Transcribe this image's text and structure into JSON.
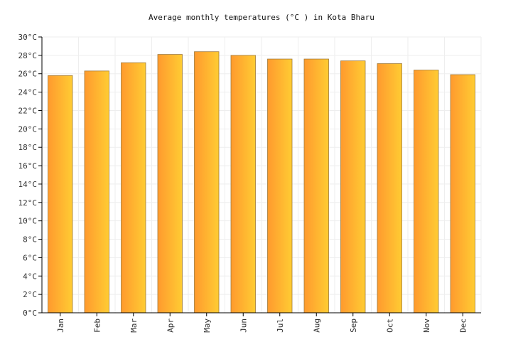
{
  "chart_data": {
    "type": "bar",
    "title": "Average monthly temperatures (°C ) in Kota Bharu",
    "categories": [
      "Jan",
      "Feb",
      "Mar",
      "Apr",
      "May",
      "Jun",
      "Jul",
      "Aug",
      "Sep",
      "Oct",
      "Nov",
      "Dec"
    ],
    "values": [
      25.8,
      26.3,
      27.2,
      28.1,
      28.4,
      28.0,
      27.6,
      27.6,
      27.4,
      27.1,
      26.4,
      25.9
    ],
    "ylim": [
      0,
      30
    ],
    "yticks": [
      "0°C",
      "2°C",
      "4°C",
      "6°C",
      "8°C",
      "10°C",
      "12°C",
      "14°C",
      "16°C",
      "18°C",
      "20°C",
      "22°C",
      "24°C",
      "26°C",
      "28°C",
      "30°C"
    ],
    "grid": true,
    "colors": {
      "bar_start": "#ff9a2e",
      "bar_end": "#ffcc33",
      "bar_stroke": "#a07a3a",
      "grid": "#eeeeee",
      "axis": "#000000"
    }
  }
}
